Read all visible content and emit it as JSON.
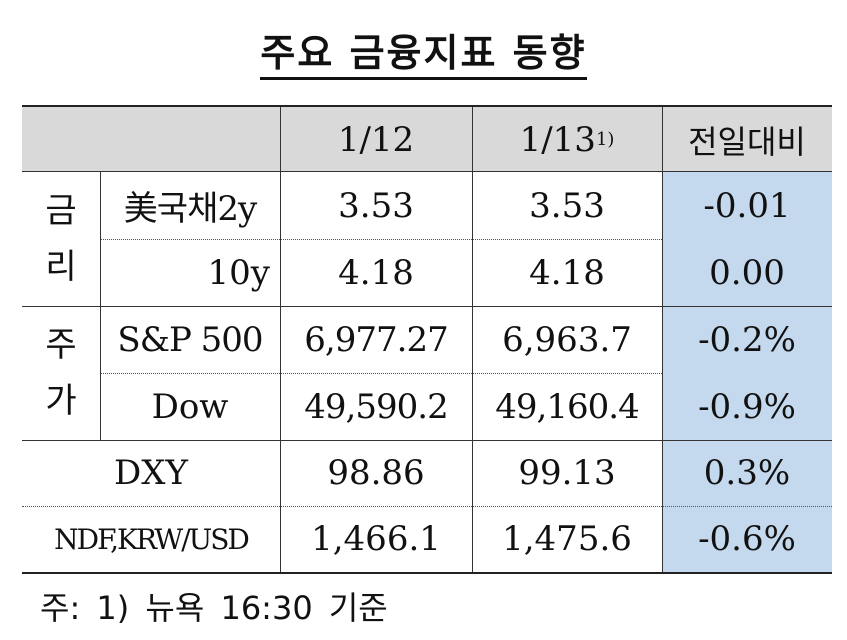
{
  "title": "주요 금융지표 동향",
  "header": {
    "col_date1": "1/12",
    "col_date2": "1/13",
    "col_date2_sup": "1)",
    "col_change": "전일대비"
  },
  "groups": {
    "rates": {
      "label_top": "금",
      "label_bottom": "리"
    },
    "stocks": {
      "label_top": "주",
      "label_bottom": "가"
    }
  },
  "rows": [
    {
      "label": "美국채2y",
      "v1": "3.53",
      "v2": "3.53",
      "change": "-0.01"
    },
    {
      "label": "10y",
      "v1": "4.18",
      "v2": "4.18",
      "change": "0.00"
    },
    {
      "label": "S&P 500",
      "v1": "6,977.27",
      "v2": "6,963.7",
      "change": "-0.2%"
    },
    {
      "label": "Dow",
      "v1": "49,590.2",
      "v2": "49,160.4",
      "change": "-0.9%"
    },
    {
      "label": "DXY",
      "v1": "98.86",
      "v2": "99.13",
      "change": "0.3%"
    },
    {
      "label": "NDF,KRW/USD",
      "v1": "1,466.1",
      "v2": "1,475.6",
      "change": "-0.6%"
    }
  ],
  "footnote": "주: 1) 뉴욕 16:30 기준",
  "colors": {
    "header_bg": "#d9d9d9",
    "change_bg": "#c5d9ee"
  }
}
